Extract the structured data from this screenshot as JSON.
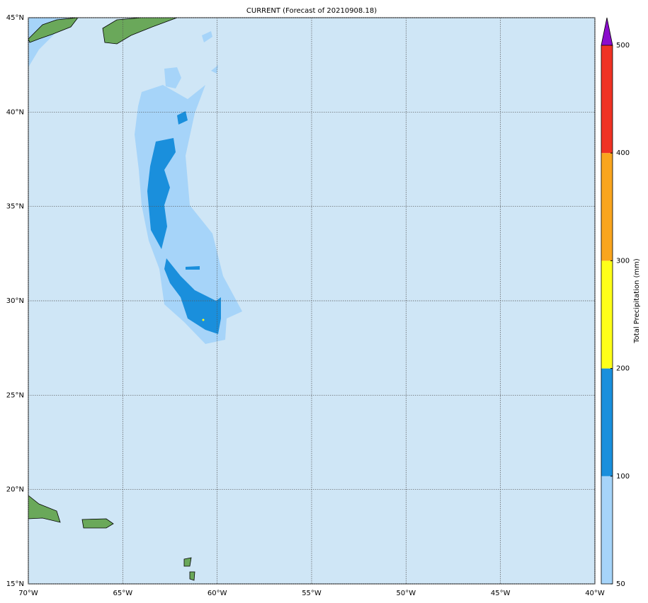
{
  "map": {
    "title": "CURRENT (Forecast of 20210908.18)",
    "lon_lim": [
      -70,
      -40
    ],
    "lat_lim": [
      15,
      45
    ],
    "lon_ticks": [
      {
        "value": -70,
        "label": "70°W"
      },
      {
        "value": -65,
        "label": "65°W"
      },
      {
        "value": -60,
        "label": "60°W"
      },
      {
        "value": -55,
        "label": "55°W"
      },
      {
        "value": -50,
        "label": "50°W"
      },
      {
        "value": -45,
        "label": "45°W"
      },
      {
        "value": -40,
        "label": "40°W"
      }
    ],
    "lat_ticks": [
      {
        "value": 15,
        "label": "15°N"
      },
      {
        "value": 20,
        "label": "20°N"
      },
      {
        "value": 25,
        "label": "25°N"
      },
      {
        "value": 30,
        "label": "30°N"
      },
      {
        "value": 35,
        "label": "35°N"
      },
      {
        "value": 40,
        "label": "40°N"
      },
      {
        "value": 45,
        "label": "45°N"
      }
    ],
    "grid": true,
    "colorbar": {
      "label": "Total Precipitation (mm)",
      "levels": [
        50,
        100,
        200,
        300,
        400,
        500
      ],
      "colors": [
        "#a6d4f9",
        "#1a8fdc",
        "#ffff19",
        "#f9a51e",
        "#ef3224"
      ],
      "extend_color": "#8a0ccc"
    }
  }
}
